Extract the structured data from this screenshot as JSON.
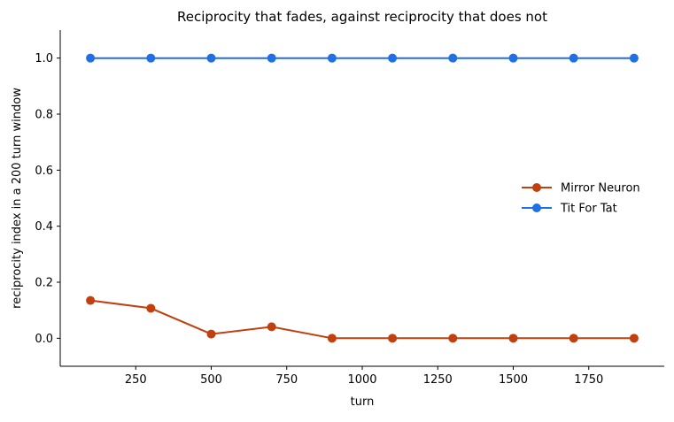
{
  "chart_data": {
    "type": "line",
    "title": "Reciprocity that fades, against reciprocity that does not",
    "xlabel": "turn",
    "ylabel": "reciprocity index in a 200 turn window",
    "x": [
      100,
      300,
      500,
      700,
      900,
      1100,
      1300,
      1500,
      1700,
      1900
    ],
    "xlim": [
      0,
      2000
    ],
    "ylim": [
      -0.1,
      1.1
    ],
    "xticks": [
      250,
      500,
      750,
      1000,
      1250,
      1500,
      1750
    ],
    "xtick_labels": [
      "250",
      "500",
      "750",
      "1000",
      "1250",
      "1500",
      "1750"
    ],
    "yticks": [
      0.0,
      0.2,
      0.4,
      0.6,
      0.8,
      1.0
    ],
    "ytick_labels": [
      "0.0",
      "0.2",
      "0.4",
      "0.6",
      "0.8",
      "1.0"
    ],
    "series": [
      {
        "name": "Mirror Neuron",
        "color": "#c0410f",
        "values": [
          0.135,
          0.107,
          0.015,
          0.041,
          0.0,
          0.0,
          0.0,
          0.0,
          0.0,
          0.0
        ]
      },
      {
        "name": "Tit For Tat",
        "color": "#1f6fe5",
        "values": [
          1.0,
          1.0,
          1.0,
          1.0,
          1.0,
          1.0,
          1.0,
          1.0,
          1.0,
          1.0
        ]
      }
    ],
    "legend": "center-right",
    "grid": false,
    "spines": "left-bottom"
  }
}
